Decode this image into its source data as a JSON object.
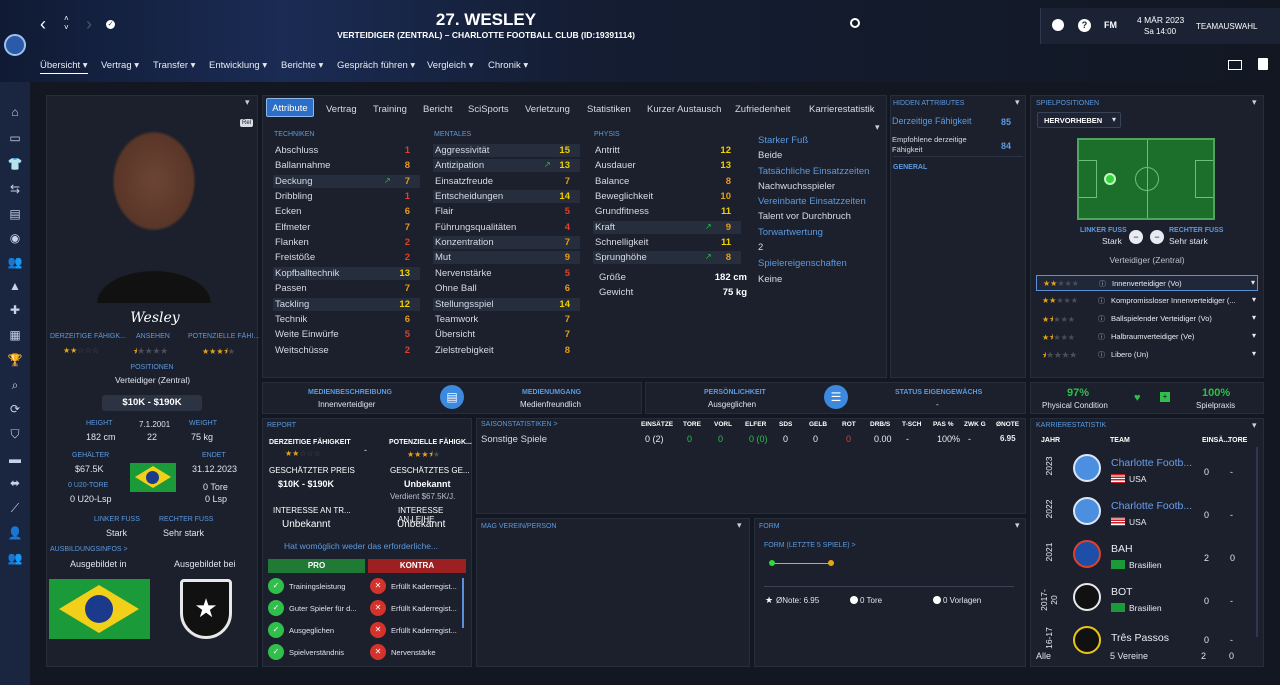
{
  "header": {
    "player_title": "27. WESLEY",
    "subtitle": "VERTEIDIGER (ZENTRAL) – CHARLOTTE FOOTBALL CLUB (ID:19391114)",
    "date": "4 MÄR 2023",
    "time": "Sa 14:00",
    "team_select": "TEAMAUSWAHL",
    "fm_label": "FM"
  },
  "menu": [
    "Übersicht",
    "Vertrag",
    "Transfer",
    "Entwicklung",
    "Berichte",
    "Gespräch führen",
    "Vergleich",
    "Chronik"
  ],
  "tabs": [
    "Attribute",
    "Vertrag",
    "Training",
    "Bericht",
    "SciSports",
    "Verletzung",
    "Statistiken",
    "Kurzer Austausch",
    "Zufriedenheit",
    "Karrierestatistik"
  ],
  "profile": {
    "badge": "Rel",
    "signature": "Wesley",
    "ability_labels": [
      "DERZEITIGE FÄHIGK...",
      "ANSEHEN",
      "POTENZIELLE FÄHI..."
    ],
    "positions_label": "POSITIONEN",
    "position": "Verteidiger (Zentral)",
    "wage": "$10K - $190K",
    "height_label": "HEIGHT",
    "height": "182 cm",
    "dob": "7.1.2001",
    "age": "22",
    "weight_label": "WEIGHT",
    "weight": "75 kg",
    "salary_label": "GEHÄLTER",
    "salary": "$67.5K",
    "u20_label": "0 U20-TORE",
    "u20_apps": "0 U20-Lsp",
    "contract_end_label": "ENDET",
    "contract_end": "31.12.2023",
    "goals": "0 Tore",
    "apps": "0 Lsp",
    "left_foot_label": "LINKER FUSS",
    "left_foot": "Stark",
    "right_foot_label": "RECHTER FUSS",
    "right_foot": "Sehr stark",
    "training_info_label": "AUSBILDUNGSINFOS >",
    "trained_in_label": "Ausgebildet in",
    "trained_at_label": "Ausgebildet bei"
  },
  "attributes": {
    "technical_title": "TECHNIKEN",
    "technical": [
      {
        "name": "Abschluss",
        "value": 1
      },
      {
        "name": "Ballannahme",
        "value": 8
      },
      {
        "name": "Deckung",
        "value": 7
      },
      {
        "name": "Dribbling",
        "value": 1
      },
      {
        "name": "Ecken",
        "value": 6
      },
      {
        "name": "Elfmeter",
        "value": 7
      },
      {
        "name": "Flanken",
        "value": 2
      },
      {
        "name": "Freistöße",
        "value": 2
      },
      {
        "name": "Kopfballtechnik",
        "value": 13
      },
      {
        "name": "Passen",
        "value": 7
      },
      {
        "name": "Tackling",
        "value": 12
      },
      {
        "name": "Technik",
        "value": 6
      },
      {
        "name": "Weite Einwürfe",
        "value": 5
      },
      {
        "name": "Weitschüsse",
        "value": 2
      }
    ],
    "mental_title": "MENTALES",
    "mental": [
      {
        "name": "Aggressivität",
        "value": 15
      },
      {
        "name": "Antizipation",
        "value": 13
      },
      {
        "name": "Einsatzfreude",
        "value": 7
      },
      {
        "name": "Entscheidungen",
        "value": 14
      },
      {
        "name": "Flair",
        "value": 5
      },
      {
        "name": "Führungsqualitäten",
        "value": 4
      },
      {
        "name": "Konzentration",
        "value": 7
      },
      {
        "name": "Mut",
        "value": 9
      },
      {
        "name": "Nervenstärke",
        "value": 5
      },
      {
        "name": "Ohne Ball",
        "value": 6
      },
      {
        "name": "Stellungsspiel",
        "value": 14
      },
      {
        "name": "Teamwork",
        "value": 7
      },
      {
        "name": "Übersicht",
        "value": 7
      },
      {
        "name": "Zielstrebigkeit",
        "value": 8
      }
    ],
    "physical_title": "PHYSIS",
    "physical": [
      {
        "name": "Antritt",
        "value": 12
      },
      {
        "name": "Ausdauer",
        "value": 13
      },
      {
        "name": "Balance",
        "value": 8
      },
      {
        "name": "Beweglichkeit",
        "value": 10
      },
      {
        "name": "Grundfitness",
        "value": 11
      },
      {
        "name": "Kraft",
        "value": 9
      },
      {
        "name": "Schnelligkeit",
        "value": 11
      },
      {
        "name": "Sprunghöhe",
        "value": 8
      }
    ],
    "size_label": "Größe",
    "size": "182 cm",
    "weight_label": "Gewicht",
    "weight": "75 kg",
    "info": [
      {
        "label": "Starker Fuß",
        "value": "Beide"
      },
      {
        "label": "Tatsächliche Einsatzzeiten",
        "value": "Nachwuchsspieler"
      },
      {
        "label": "Vereinbarte Einsatzzeiten",
        "value": "Talent vor Durchbruch"
      },
      {
        "label": "Torwartwertung",
        "value": "2"
      },
      {
        "label": "Spielereigenschaften",
        "value": "Keine"
      }
    ]
  },
  "hidden": {
    "title": "HIDDEN ATTRIBUTES",
    "current_label": "Derzeitige Fähigkeit",
    "current": "85",
    "recommended_label": "Empfohlene derzeitige Fähigkeit",
    "recommended": "84",
    "general": "GENERAL"
  },
  "positions_panel": {
    "title": "SPIELPOSITIONEN",
    "dropdown": "HERVORHEBEN",
    "left_foot_label": "LINKER FUSS",
    "left_foot": "Stark",
    "right_foot_label": "RECHTER FUSS",
    "right_foot": "Sehr stark",
    "position": "Verteidiger (Zentral)",
    "roles": [
      {
        "name": "Innenverteidiger (Vo)",
        "stars": 2
      },
      {
        "name": "Kompromissloser Innenverteidiger (...",
        "stars": 2
      },
      {
        "name": "Ballspielender Verteidiger (Vo)",
        "stars": 1.5
      },
      {
        "name": "Halbraumverteidiger (Ve)",
        "stars": 1.5
      },
      {
        "name": "Libero (Un)",
        "stars": 0.5
      }
    ]
  },
  "media": {
    "desc_label": "MEDIENBESCHREIBUNG",
    "desc": "Innenverteidiger",
    "handling_label": "MEDIENUMGANG",
    "handling": "Medienfreundlich",
    "personality_label": "PERSÖNLICHKEIT",
    "personality": "Ausgeglichen",
    "status_label": "STATUS EIGENGEWÄCHS",
    "status": "-"
  },
  "condition": {
    "physical": "97%",
    "physical_label": "Physical Condition",
    "practice": "100%",
    "practice_label": "Spielpraxis"
  },
  "report": {
    "title": "REPORT",
    "current_label": "DERZEITIGE FÄHIGKEIT",
    "potential_label": "POTENZIELLE FÄHIGK...",
    "dash": "-",
    "est_price_label": "GESCHÄTZTER PREIS",
    "est_price": "$10K - $190K",
    "est_wage_label": "GESCHÄTZTES GE...",
    "est_wage": "Unbekannt",
    "est_wage_note": "Verdient $67.5K/J.",
    "transfer_interest_label": "INTERESSE AN TR...",
    "transfer_interest": "Unbekannt",
    "loan_interest_label": "INTERESSE AN LEIHE",
    "loan_interest": "Unbekannt",
    "note": "Hat womöglich weder das erforderliche...",
    "pro_label": "PRO",
    "contra_label": "KONTRA",
    "pro": [
      "Trainingsleistung",
      "Guter Spieler für d...",
      "Ausgeglichen",
      "Spielverständnis"
    ],
    "contra": [
      "Erfüllt Kaderregist...",
      "Erfüllt Kaderregist...",
      "Erfüllt Kaderregist...",
      "Nervenstärke"
    ]
  },
  "season": {
    "title": "SAISONSTATISTIKEN >",
    "headers": [
      "EINSÄTZE",
      "TORE",
      "VORL",
      "ELFER",
      "SDS",
      "GELB",
      "ROT",
      "DRB/S",
      "T-SCH",
      "PAS %",
      "ZWK G",
      "ØNOTE"
    ],
    "row_label": "Sonstige Spiele",
    "row": [
      "0 (2)",
      "0",
      "0",
      "0 (0)",
      "0",
      "0",
      "0",
      "0.00",
      "-",
      "100%",
      "-",
      "6.95"
    ]
  },
  "likes": {
    "title": "MAG VEREIN/PERSON"
  },
  "form": {
    "title": "FORM",
    "subtitle": "FORM (LETZTE 5 SPIELE) >",
    "avg": "ØNote: 6.95",
    "goals": "0 Tore",
    "assists": "0 Vorlagen"
  },
  "career": {
    "title": "KARRIERESTATISTIK",
    "col_year": "JAHR",
    "col_team": "TEAM",
    "col_apps": "EINSÄ...",
    "col_goals": "TORE",
    "rows": [
      {
        "year": "2023",
        "team": "Charlotte Footb...",
        "country": "USA",
        "apps": "0",
        "goals": "-"
      },
      {
        "year": "2022",
        "team": "Charlotte Footb...",
        "country": "USA",
        "apps": "0",
        "goals": "-"
      },
      {
        "year": "2021",
        "team": "BAH",
        "country": "Brasilien",
        "apps": "2",
        "goals": "0"
      },
      {
        "year": "2017-20",
        "team": "BOT",
        "country": "Brasilien",
        "apps": "0",
        "goals": "-"
      },
      {
        "year": "16-17",
        "team": "Três Passos",
        "country": "",
        "apps": "0",
        "goals": "-"
      }
    ],
    "footer_label": "Alle",
    "footer_clubs": "5 Vereine",
    "footer_apps": "2",
    "footer_goals": "0"
  },
  "colors": {
    "accent": "#5b9ae0",
    "star": "#e8a417",
    "high": "#f0d000",
    "mid": "#e89a1a",
    "low": "#e0402a",
    "green": "#2fbf4a",
    "pro": "#1e7a35",
    "contra": "#9c1f22"
  }
}
